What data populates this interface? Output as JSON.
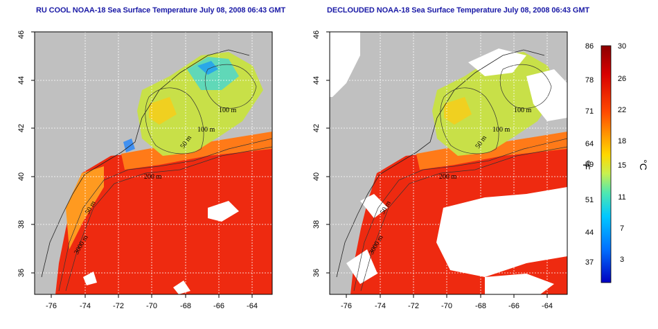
{
  "panels": [
    {
      "title": "RU COOL NOAA-18 Sea Surface Temperature July 08, 2008 06:43 GMT",
      "contour_labels": [
        "100 m",
        "100 m",
        "50 m",
        "200 m",
        "50 m",
        "3000 m"
      ]
    },
    {
      "title": "DECLOUDED NOAA-18 Sea Surface Temperature July 08, 2008 06:43 GMT",
      "contour_labels": [
        "100 m",
        "100 m",
        "50 m",
        "200 m",
        "50 m",
        "3000 m"
      ]
    }
  ],
  "axes": {
    "lon_ticks": [
      "-76",
      "-74",
      "-72",
      "-70",
      "-68",
      "-66",
      "-64"
    ],
    "lat_ticks": [
      "36",
      "38",
      "40",
      "42",
      "44",
      "46"
    ]
  },
  "colorbar": {
    "fahrenheit_ticks": [
      "86",
      "78",
      "71",
      "64",
      "59",
      "51",
      "44",
      "37"
    ],
    "celsius_ticks": [
      "30",
      "26",
      "22",
      "18",
      "15",
      "11",
      "7",
      "3"
    ],
    "fahrenheit_unit": "°F",
    "celsius_unit": "°C",
    "colors": [
      "#8b0000",
      "#e00000",
      "#ff4a00",
      "#ff9a00",
      "#ffd800",
      "#c8f050",
      "#50e8b0",
      "#00c8ff",
      "#0070ff",
      "#0000c8"
    ]
  },
  "map_colors": {
    "land": "#c0c0c0",
    "cloud": "#ffffff",
    "warm": "#ee2a10",
    "mid": "#ff8a18",
    "cool": "#d8e840",
    "cold": "#60d8b8"
  }
}
